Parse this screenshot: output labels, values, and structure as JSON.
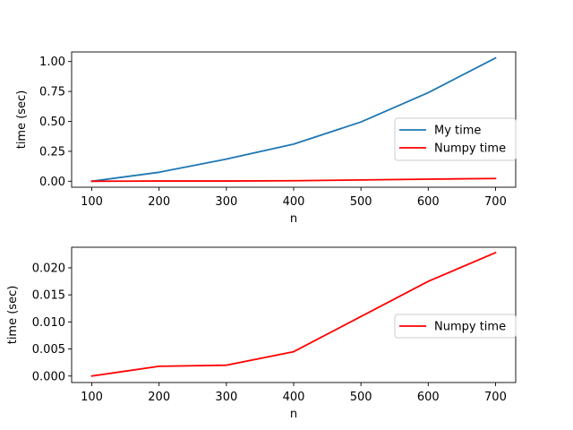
{
  "chart_data": [
    {
      "type": "line",
      "xlabel": "n",
      "ylabel": "time (sec)",
      "xlim": [
        70,
        730
      ],
      "ylim": [
        -0.05,
        1.08
      ],
      "xticks": [
        100,
        200,
        300,
        400,
        500,
        600,
        700
      ],
      "xtick_labels": [
        "100",
        "200",
        "300",
        "400",
        "500",
        "600",
        "700"
      ],
      "yticks": [
        0.0,
        0.25,
        0.5,
        0.75,
        1.0
      ],
      "ytick_labels": [
        "0.00",
        "0.25",
        "0.50",
        "0.75",
        "1.00"
      ],
      "grid": false,
      "legend_position": "center-right",
      "series": [
        {
          "name": "My time",
          "color": "#1f77b4",
          "x": [
            100,
            200,
            300,
            400,
            500,
            600,
            700
          ],
          "y": [
            0.0,
            0.075,
            0.185,
            0.31,
            0.495,
            0.74,
            1.03
          ]
        },
        {
          "name": "Numpy time",
          "color": "#ff0000",
          "x": [
            100,
            200,
            300,
            400,
            500,
            600,
            700
          ],
          "y": [
            0.0,
            0.0018,
            0.002,
            0.0045,
            0.011,
            0.0175,
            0.0228
          ]
        }
      ]
    },
    {
      "type": "line",
      "xlabel": "n",
      "ylabel": "time (sec)",
      "xlim": [
        70,
        730
      ],
      "ylim": [
        -0.0012,
        0.0238
      ],
      "xticks": [
        100,
        200,
        300,
        400,
        500,
        600,
        700
      ],
      "xtick_labels": [
        "100",
        "200",
        "300",
        "400",
        "500",
        "600",
        "700"
      ],
      "yticks": [
        0.0,
        0.005,
        0.01,
        0.015,
        0.02
      ],
      "ytick_labels": [
        "0.000",
        "0.005",
        "0.010",
        "0.015",
        "0.020"
      ],
      "grid": false,
      "legend_position": "center-right",
      "series": [
        {
          "name": "Numpy time",
          "color": "#ff0000",
          "x": [
            100,
            200,
            300,
            400,
            500,
            600,
            700
          ],
          "y": [
            0.0,
            0.0018,
            0.002,
            0.0045,
            0.011,
            0.0175,
            0.0228
          ]
        }
      ]
    }
  ]
}
